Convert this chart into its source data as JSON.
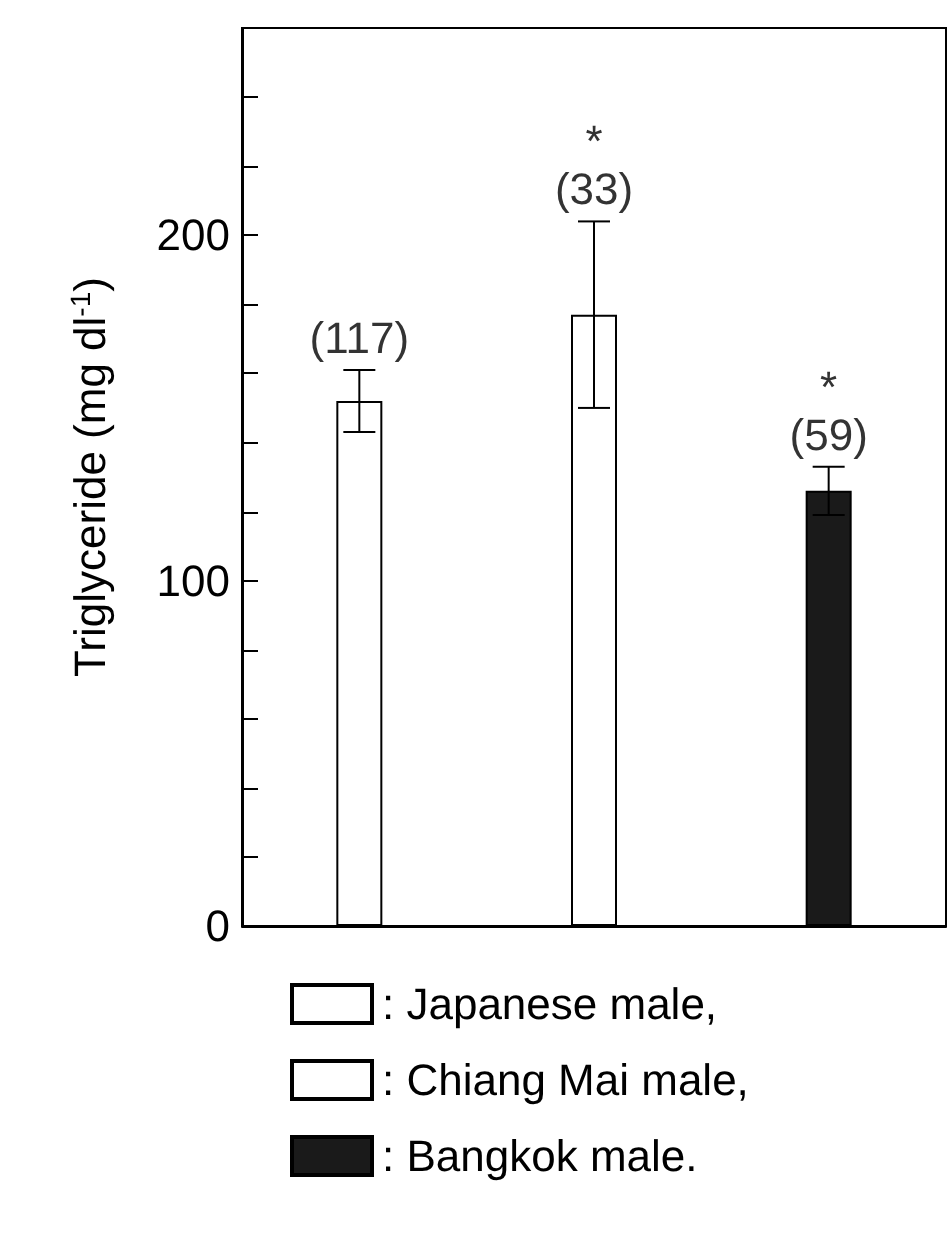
{
  "chart_data": {
    "type": "bar",
    "ylabel": "Triglyceride (mg dl$^{-1}$)",
    "categories": [
      null,
      null,
      null
    ],
    "stacked": true,
    "series": [
      {
        "name": ": Japanese male,",
        "color": "#ffffff",
        "values": [
          152,
          null,
          null
        ],
        "errors": [
          9,
          null,
          null
        ]
      },
      {
        "name": ": Chiang Mai male,",
        "color": "#ffffff",
        "values": [
          null,
          177,
          null
        ],
        "errors": [
          null,
          27,
          null
        ]
      },
      {
        "name": ": Bangkok male.",
        "color": "#1a1a1a",
        "values": [
          null,
          null,
          126
        ],
        "errors": [
          null,
          null,
          7
        ]
      }
    ],
    "annotations": [
      "(117)",
      "*\n(33)",
      "*\n(59)"
    ],
    "ylim": [
      0,
      260
    ],
    "yticks": [
      0,
      {
        "value": 20,
        "label": null
      },
      {
        "value": 40,
        "label": null
      },
      {
        "value": 60,
        "label": null
      },
      {
        "value": 80,
        "label": null
      },
      100,
      {
        "value": 120,
        "label": null
      },
      {
        "value": 140,
        "label": null
      },
      {
        "value": 160,
        "label": null
      },
      {
        "value": 180,
        "label": null
      },
      200,
      {
        "value": 220,
        "label": null
      },
      {
        "value": 240,
        "label": null
      }
    ],
    "legend": "bottom",
    "grid": false
  }
}
